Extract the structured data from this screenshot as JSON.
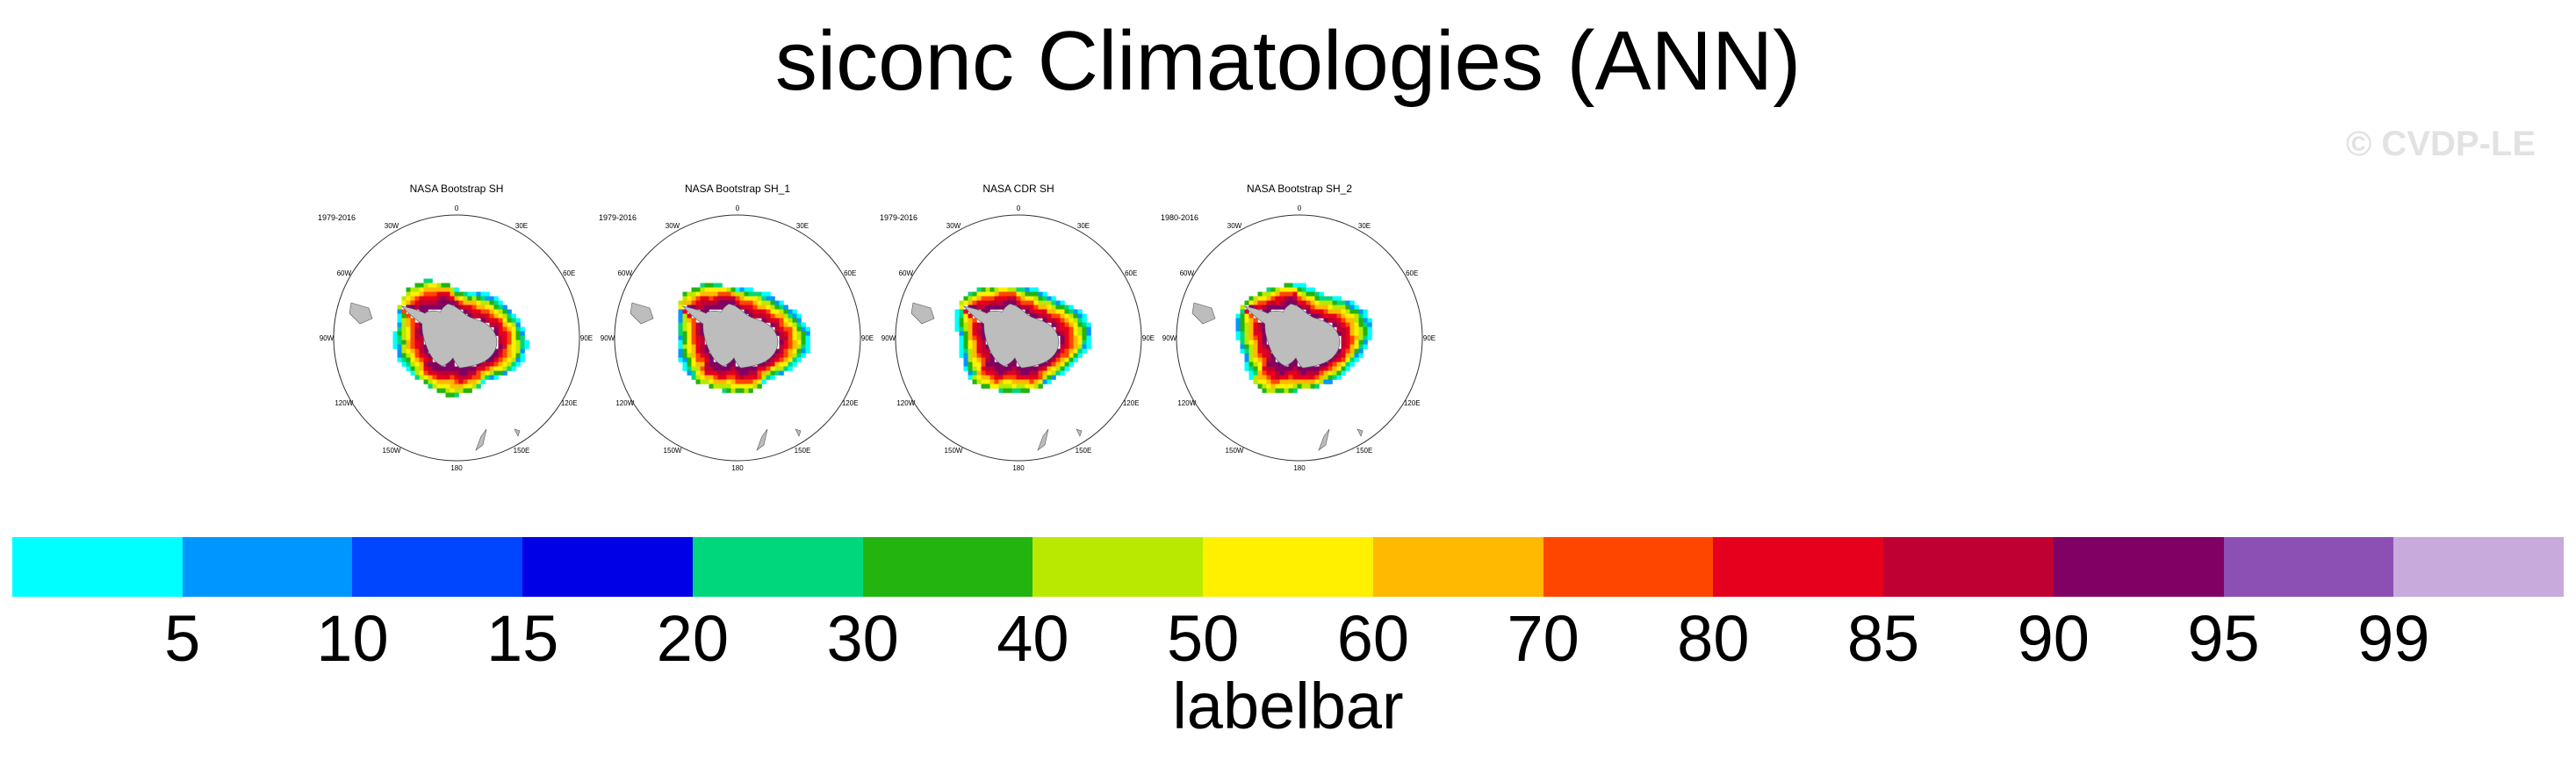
{
  "title": "siconc Climatologies (ANN)",
  "watermark": "© CVDP-LE",
  "panels": [
    {
      "title": "NASA Bootstrap SH",
      "years": "1979-2016"
    },
    {
      "title": "NASA Bootstrap SH_1",
      "years": "1979-2016"
    },
    {
      "title": "NASA CDR SH",
      "years": "1979-2016"
    },
    {
      "title": "NASA Bootstrap SH_2",
      "years": "1980-2016"
    }
  ],
  "map_labels": {
    "top": "0",
    "top_left": "30W",
    "top_right": "30E",
    "upper_left": "60W",
    "upper_right": "60E",
    "left": "90W",
    "right": "90E",
    "lower_left": "120W",
    "lower_right": "120E",
    "bottom_left": "150W",
    "bottom_right": "150E",
    "bottom": "180"
  },
  "labelbar": {
    "label": "labelbar",
    "colors": [
      "#00ffff",
      "#0096ff",
      "#0045ff",
      "#0000e6",
      "#00d77d",
      "#23b40f",
      "#b9e900",
      "#fff000",
      "#ffb900",
      "#ff4600",
      "#e6001e",
      "#be0032",
      "#800064",
      "#8c50b4",
      "#c8aadc"
    ],
    "ticks": [
      "5",
      "10",
      "15",
      "20",
      "30",
      "40",
      "50",
      "60",
      "70",
      "80",
      "85",
      "90",
      "95",
      "99"
    ]
  },
  "colors": {
    "land": "#bdbdbd",
    "ocean": "#ffffff",
    "outline": "#333333"
  }
}
